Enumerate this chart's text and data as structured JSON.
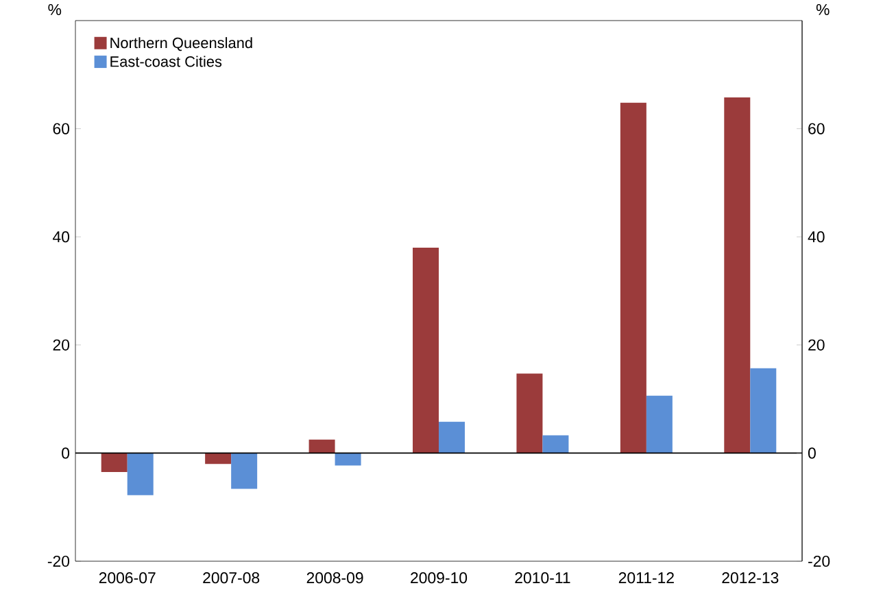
{
  "chart_data": {
    "type": "bar",
    "ylabel": "%",
    "y2label": "%",
    "categories": [
      "2006-07",
      "2007-08",
      "2008-09",
      "2009-10",
      "2010-11",
      "2011-12",
      "2012-13"
    ],
    "series": [
      {
        "name": "Northern Queensland",
        "color": "#9b3b3b",
        "values": [
          -3.5,
          -2,
          2.5,
          38,
          14.7,
          64.8,
          65.8
        ]
      },
      {
        "name": "East-coast Cities",
        "color": "#5b8fd6",
        "values": [
          -7.8,
          -6.6,
          -2.3,
          5.8,
          3.3,
          10.6,
          15.7
        ]
      }
    ],
    "ylim": [
      -20,
      80
    ],
    "yticks": [
      -20,
      0,
      20,
      40,
      60
    ],
    "y2lim": [
      -20,
      80
    ],
    "y2ticks": [
      -20,
      0,
      20,
      40,
      60
    ],
    "ref_lines": [
      {
        "axis": "y",
        "value": 0
      }
    ],
    "legend": "top left"
  }
}
